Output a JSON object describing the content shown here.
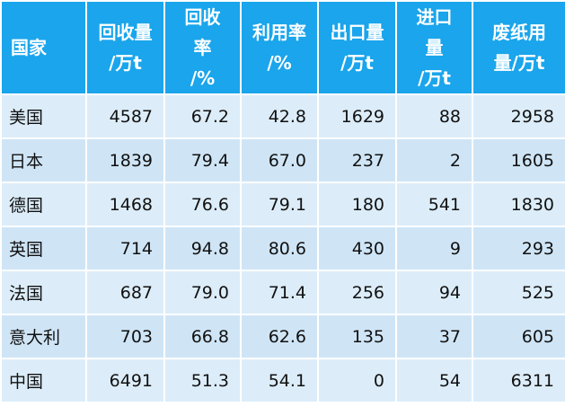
{
  "table": {
    "header": [
      [
        "国家"
      ],
      [
        "回收量",
        "/万t"
      ],
      [
        "回收率",
        "/%"
      ],
      [
        "利用率",
        "/%"
      ],
      [
        "出口量",
        "/万t"
      ],
      [
        "进口量",
        "/万t"
      ],
      [
        "废纸用",
        "量/万t"
      ]
    ],
    "rows": [
      [
        "美国",
        "4587",
        "67.2",
        "42.8",
        "1629",
        "88",
        "2958"
      ],
      [
        "日本",
        "1839",
        "79.4",
        "67.0",
        "237",
        "2",
        "1605"
      ],
      [
        "德国",
        "1468",
        "76.6",
        "79.1",
        "180",
        "541",
        "1830"
      ],
      [
        "英国",
        "714",
        "94.8",
        "80.6",
        "430",
        "9",
        "293"
      ],
      [
        "法国",
        "687",
        "79.0",
        "71.4",
        "256",
        "94",
        "525"
      ],
      [
        "意大利",
        "703",
        "66.8",
        "62.6",
        "135",
        "37",
        "605"
      ],
      [
        "中国",
        "6491",
        "51.3",
        "54.1",
        "0",
        "54",
        "6311"
      ]
    ]
  }
}
